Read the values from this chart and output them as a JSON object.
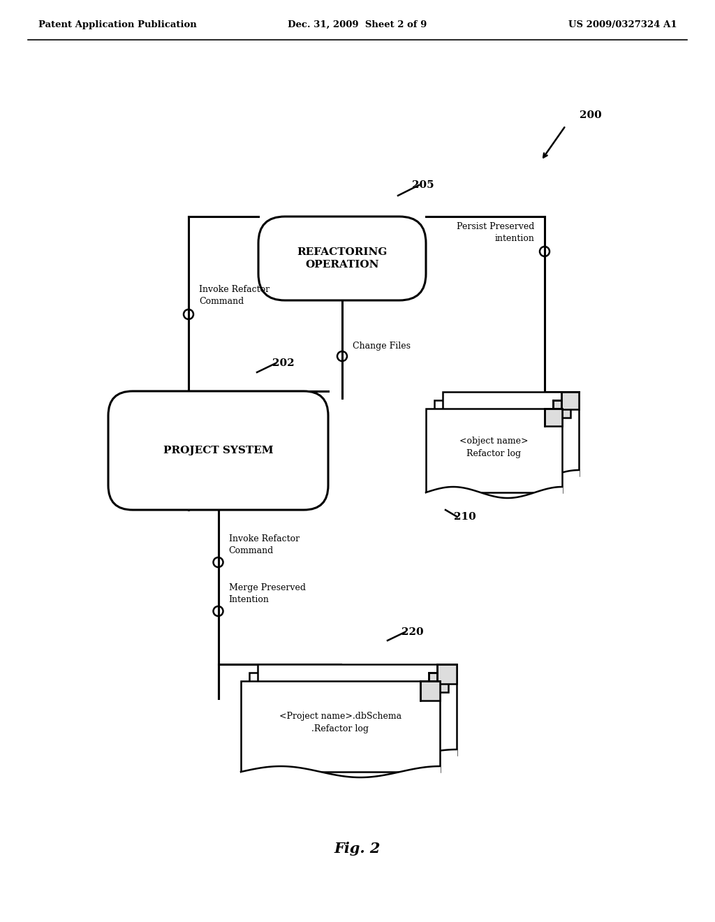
{
  "bg_color": "#ffffff",
  "header_left": "Patent Application Publication",
  "header_center": "Dec. 31, 2009  Sheet 2 of 9",
  "header_right": "US 2009/0327324 A1",
  "fig_label": "Fig. 2",
  "label_200": "200",
  "label_202": "202",
  "label_205": "205",
  "label_210": "210",
  "label_220": "220",
  "box_refactoring_text": "REFACTORING\nOPERATION",
  "box_project_text": "PROJECT SYSTEM",
  "doc_210_line1": "<object name>",
  "doc_210_line2": "Refactor log",
  "doc_220_line1": "<Project name>.dbSchema",
  "doc_220_line2": ".Refactor log",
  "label_invoke1": "Invoke Refactor\nCommand",
  "label_persist": "Persist Preserved\nintention",
  "label_change": "Change Files",
  "label_invoke2": "Invoke Refactor\nCommand",
  "label_merge": "Merge Preserved\nIntention"
}
